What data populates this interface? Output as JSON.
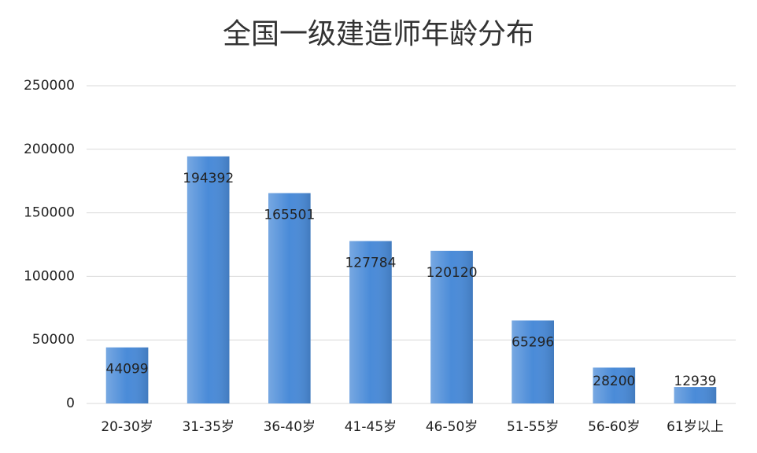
{
  "chart_data": {
    "type": "bar",
    "title": "全国一级建造师年龄分布",
    "categories": [
      "20-30岁",
      "31-35岁",
      "36-40岁",
      "41-45岁",
      "46-50岁",
      "51-55岁",
      "56-60岁",
      "61岁以上"
    ],
    "values": [
      44099,
      194392,
      165501,
      127784,
      120120,
      65296,
      28200,
      12939
    ],
    "color": "#4a8bd8",
    "ylim": [
      0,
      250000
    ],
    "yticks": [
      0,
      50000,
      100000,
      150000,
      200000,
      250000
    ],
    "grid": true
  }
}
